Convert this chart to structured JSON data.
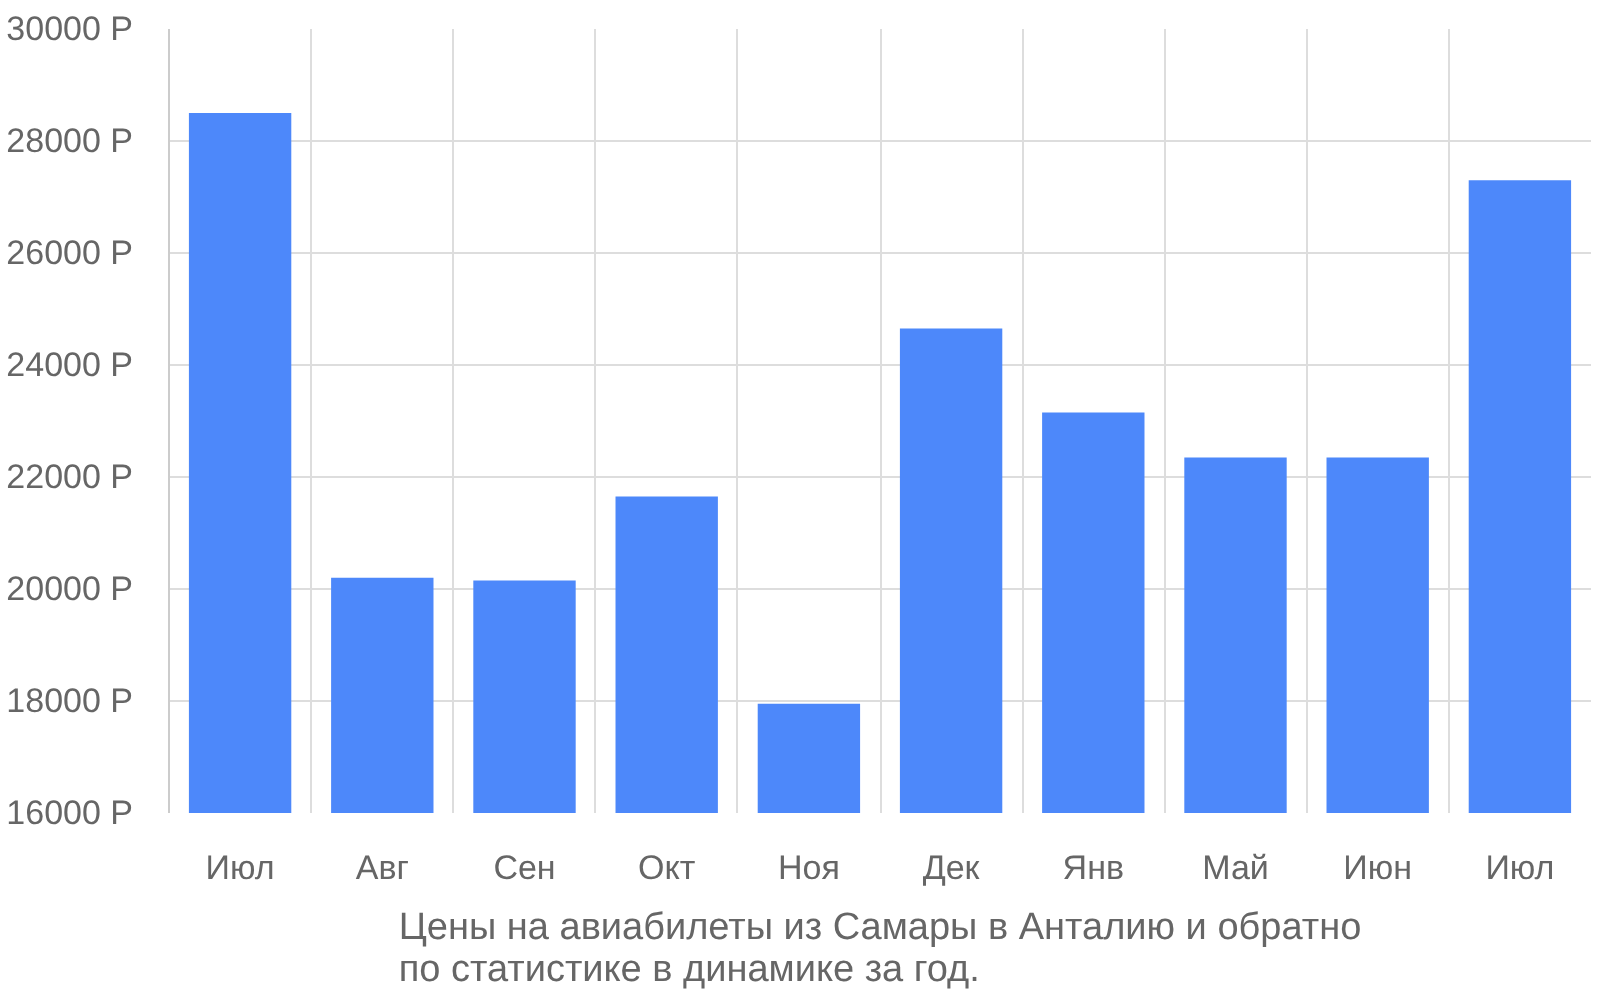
{
  "chart_data": {
    "type": "bar",
    "title": "Цены на авиабилеты из Самары в Анталию и обратно\nпо статистике в динамике за год.",
    "categories": [
      "Июл",
      "Авг",
      "Сен",
      "Окт",
      "Ноя",
      "Дек",
      "Янв",
      "Май",
      "Июн",
      "Июл"
    ],
    "values": [
      28500,
      20200,
      20150,
      21650,
      17950,
      24650,
      23150,
      22350,
      22350,
      27300
    ],
    "color": "#4d88fa",
    "ylim": [
      16000,
      30000
    ],
    "yticks": [
      {
        "value": 16000,
        "label": "16000 Р"
      },
      {
        "value": 18000,
        "label": "18000 Р"
      },
      {
        "value": 20000,
        "label": "20000 Р"
      },
      {
        "value": 22000,
        "label": "22000 Р"
      },
      {
        "value": 24000,
        "label": "24000 Р"
      },
      {
        "value": 26000,
        "label": "26000 Р"
      },
      {
        "value": 28000,
        "label": "28000 Р"
      },
      {
        "value": 30000,
        "label": "30000 Р"
      }
    ],
    "grid": true
  }
}
